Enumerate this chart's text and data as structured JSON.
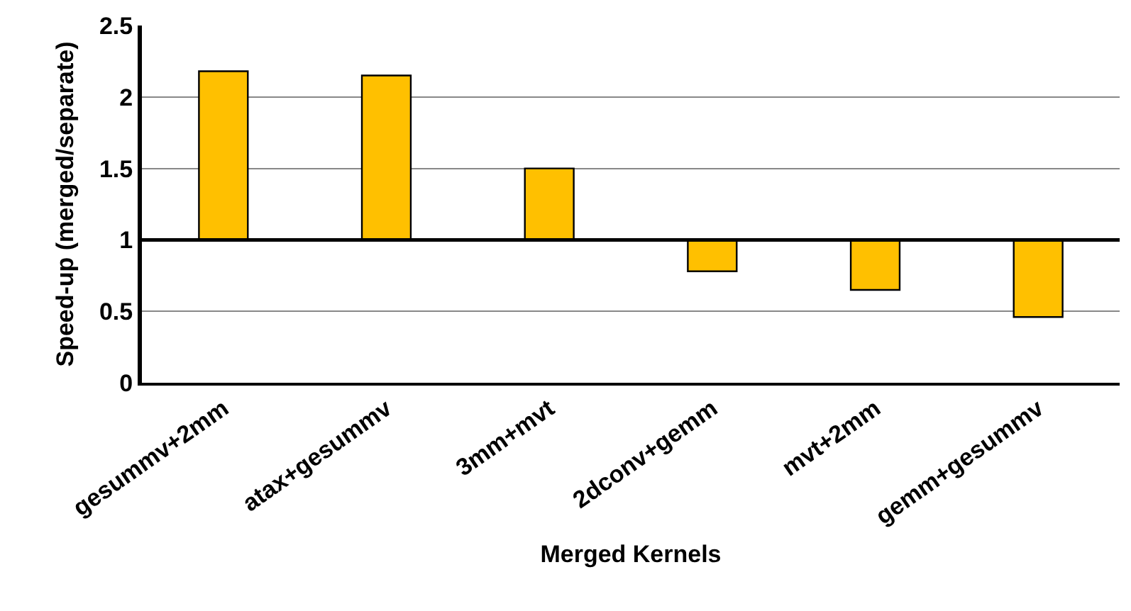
{
  "chart_data": {
    "type": "bar",
    "xlabel": "Merged Kernels",
    "ylabel": "Speed-up (merged/separate)",
    "categories": [
      "gesummv+2mm",
      "atax+gesummv",
      "3mm+mvt",
      "2dconv+gemm",
      "mvt+2mm",
      "gemm+gesummv"
    ],
    "base": [
      1,
      1,
      1,
      1,
      1,
      1
    ],
    "values": [
      1.18,
      1.15,
      0.5,
      -0.22,
      -0.35,
      -0.54
    ],
    "color": "#ffc000",
    "ylim": [
      0,
      2.5
    ],
    "yticks": [
      0,
      0.5,
      1,
      1.5,
      2,
      2.5
    ],
    "grid": "y",
    "ref_lines": [
      {
        "axis": "y",
        "value": 1,
        "color": "#000000"
      }
    ]
  }
}
